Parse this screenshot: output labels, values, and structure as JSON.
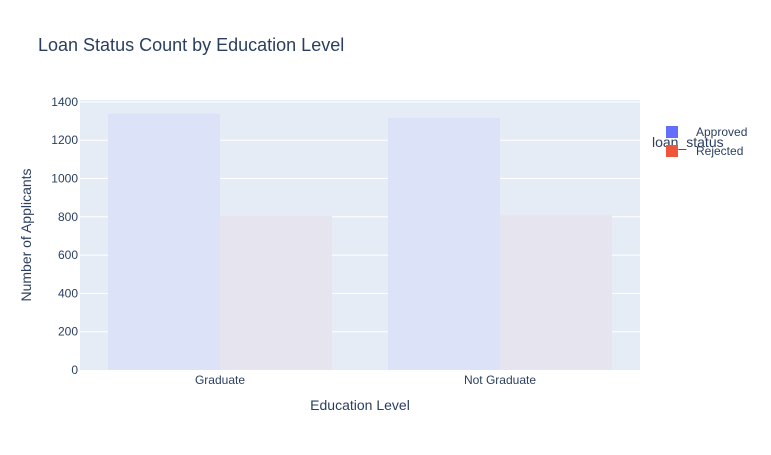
{
  "chart_data": {
    "type": "bar",
    "barmode": "group",
    "title": "Loan Status Count by Education Level",
    "xlabel": "Education Level",
    "ylabel": "Number of Applicants",
    "categories": [
      "Graduate",
      "Not Graduate"
    ],
    "series": [
      {
        "name": "Approved",
        "values": [
          1339,
          1317
        ]
      },
      {
        "name": "Rejected",
        "values": [
          805,
          808
        ]
      }
    ],
    "ylim": [
      0,
      1410
    ],
    "yticks": [
      0,
      200,
      400,
      600,
      800,
      1000,
      1200,
      1400
    ],
    "grid": true,
    "legend": {
      "title": "loan_status",
      "position": "top-right"
    },
    "colors": {
      "Approved": "#636efa",
      "Rejected": "#ef553b",
      "approved_bar_fill": "#dce3f9",
      "rejected_bar_fill": "#e6e4ef",
      "plot_background": "#e5ecf6",
      "text": "#2a3f5f",
      "grid": "#ffffff"
    }
  }
}
